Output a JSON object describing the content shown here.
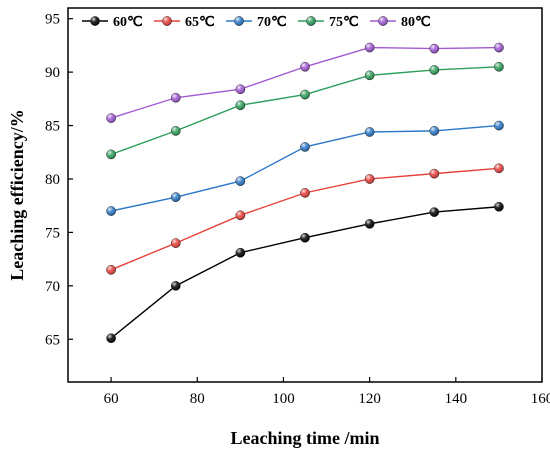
{
  "chart_data": {
    "type": "line",
    "xlabel": "Leaching time /min",
    "ylabel": "Leaching efficiency/%",
    "xlim": [
      50,
      160
    ],
    "ylim": [
      61,
      96
    ],
    "xticks": [
      60,
      80,
      100,
      120,
      140,
      160
    ],
    "yticks": [
      65,
      70,
      75,
      80,
      85,
      90,
      95
    ],
    "grid": false,
    "legend_position": "top",
    "x": [
      60,
      75,
      90,
      105,
      120,
      135,
      150
    ],
    "series": [
      {
        "name": "60℃",
        "color": "#000000",
        "values": [
          65.1,
          70.0,
          73.1,
          74.5,
          75.8,
          76.9,
          77.4
        ]
      },
      {
        "name": "65℃",
        "color": "#e8403a",
        "values": [
          71.5,
          74.0,
          76.6,
          78.7,
          80.0,
          80.5,
          81.0
        ]
      },
      {
        "name": "70℃",
        "color": "#2a78c7",
        "values": [
          77.0,
          78.3,
          79.8,
          83.0,
          84.4,
          84.5,
          85.0
        ]
      },
      {
        "name": "75℃",
        "color": "#2e9e5b",
        "values": [
          82.3,
          84.5,
          86.9,
          87.9,
          89.7,
          90.2,
          90.5
        ]
      },
      {
        "name": "80℃",
        "color": "#a05ad3",
        "values": [
          85.7,
          87.6,
          88.4,
          90.5,
          92.3,
          92.2,
          92.3
        ]
      }
    ]
  }
}
